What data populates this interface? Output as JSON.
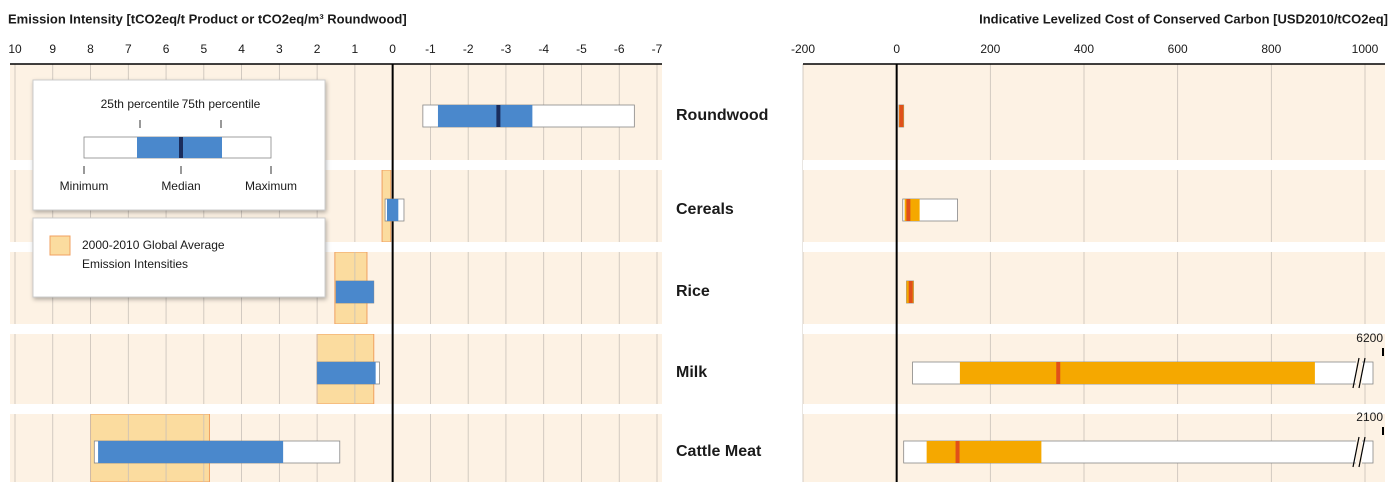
{
  "chart_data": [
    {
      "type": "box",
      "title": "Emission Intensity [tCO2eq/t Product or tCO2eq/m³ Roundwood]",
      "categories": [
        "Roundwood",
        "Cereals",
        "Rice",
        "Milk",
        "Cattle Meat"
      ],
      "xlim": [
        10,
        -7
      ],
      "xticks": [
        10,
        9,
        8,
        7,
        6,
        5,
        4,
        3,
        2,
        1,
        0,
        -1,
        -2,
        -3,
        -4,
        -5,
        -6,
        -7
      ],
      "min": [
        -6.4,
        -0.3,
        0.5,
        0.35,
        1.4
      ],
      "q1": [
        -3.7,
        -0.15,
        0.5,
        0.45,
        2.9
      ],
      "median": [
        -2.8,
        null,
        null,
        null,
        null
      ],
      "q3": [
        -1.2,
        0.15,
        1.5,
        2.0,
        7.8
      ],
      "max": [
        -0.8,
        0.2,
        1.5,
        2.0,
        7.9
      ],
      "box_color": "#4a88cc",
      "median_color": "#1b2d5c",
      "global_average": {
        "name": "2000-2010 Global Average Emission Intensities",
        "color": "#fbdc9f",
        "low": [
          null,
          0.05,
          0.68,
          0.5,
          4.85
        ],
        "high": [
          null,
          0.28,
          1.53,
          2.0,
          8.0
        ]
      },
      "legend_labels": [
        "25th percentile",
        "75th percentile",
        "Minimum",
        "Median",
        "Maximum"
      ],
      "grid": true
    },
    {
      "type": "box",
      "title": "Indicative Levelized Cost of Conserved Carbon [USD2010/tCO2eq]",
      "xlim": [
        -200,
        1000
      ],
      "xticks": [
        -200,
        0,
        200,
        400,
        600,
        800,
        1000
      ],
      "min": [
        5,
        13,
        21,
        34,
        15
      ],
      "q1": [
        5,
        17,
        21,
        135,
        64
      ],
      "median": [
        10,
        25,
        30,
        345,
        130
      ],
      "q3": [
        15,
        49,
        36,
        893,
        309
      ],
      "max": [
        15,
        130,
        36,
        6200,
        2100
      ],
      "box_color": "#f5a800",
      "median_color": "#e0501a",
      "grid": true
    }
  ]
}
